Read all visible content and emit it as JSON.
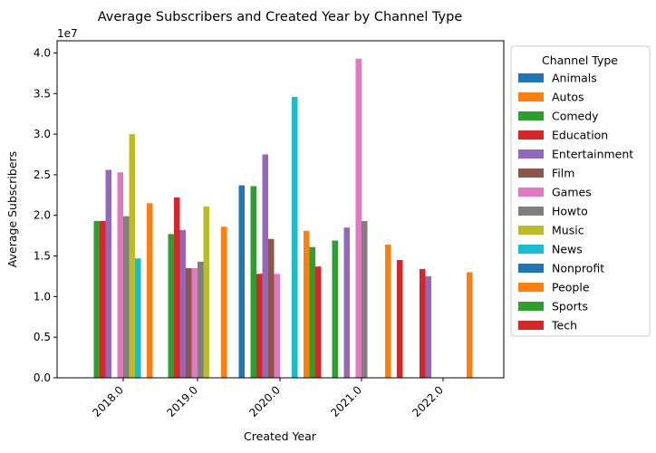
{
  "chart_data": {
    "type": "bar",
    "title": "Average Subscribers and Created Year by Channel Type",
    "xlabel": "Created Year",
    "ylabel": "Average Subscribers",
    "y_offset_label": "1e7",
    "y_scale": 10000000,
    "ylim": [
      0,
      41500000
    ],
    "y_ticks": [
      0,
      5000000,
      10000000,
      15000000,
      20000000,
      25000000,
      30000000,
      35000000,
      40000000
    ],
    "y_tick_labels": [
      "0.0",
      "0.5",
      "1.0",
      "1.5",
      "2.0",
      "2.5",
      "3.0",
      "3.5",
      "4.0"
    ],
    "categories": [
      "2018.0",
      "2019.0",
      "2020.0",
      "2021.0",
      "2022.0"
    ],
    "legend": {
      "title": "Channel Type",
      "placement": "outside-right"
    },
    "grid": false,
    "series": [
      {
        "name": "Animals",
        "color": "#1f77b4",
        "values": [
          null,
          null,
          23700000,
          null,
          null
        ]
      },
      {
        "name": "Autos",
        "color": "#ff7f0e",
        "values": [
          null,
          null,
          null,
          null,
          null
        ]
      },
      {
        "name": "Comedy",
        "color": "#2ca02c",
        "values": [
          19300000,
          17700000,
          23600000,
          null,
          null
        ]
      },
      {
        "name": "Education",
        "color": "#d62728",
        "values": [
          19300000,
          22200000,
          12800000,
          null,
          null
        ]
      },
      {
        "name": "Entertainment",
        "color": "#9467bd",
        "values": [
          25600000,
          18200000,
          27500000,
          null,
          null
        ]
      },
      {
        "name": "Film",
        "color": "#8c564b",
        "values": [
          null,
          13500000,
          null,
          null,
          null
        ]
      },
      {
        "name": "Games",
        "color": "#e377c2",
        "values": [
          25300000,
          13500000,
          null,
          null,
          null
        ]
      },
      {
        "name": "Howto",
        "color": "#7f7f7f",
        "values": [
          19900000,
          14300000,
          null,
          null,
          null
        ]
      },
      {
        "name": "Music",
        "color": "#bcbd22",
        "values": [
          30000000,
          21100000,
          null,
          null,
          null
        ]
      },
      {
        "name": "News",
        "color": "#17becf",
        "values": [
          14700000,
          null,
          null,
          null,
          null
        ]
      },
      {
        "name": "Nonprofit",
        "color": "#1f77b4",
        "values": [
          null,
          null,
          null,
          null,
          null
        ]
      },
      {
        "name": "People",
        "color": "#ff7f0e",
        "values": [
          21500000,
          18600000,
          null,
          null,
          null
        ]
      },
      {
        "name": "Sports",
        "color": "#2ca02c",
        "values": [
          null,
          null,
          null,
          null,
          null
        ]
      },
      {
        "name": "Tech",
        "color": "#d62728",
        "values": [
          null,
          null,
          null,
          null,
          null
        ]
      }
    ],
    "extra_bars": [
      {
        "series": "Film",
        "category": "2020.0",
        "value": 17100000
      },
      {
        "series": "Games",
        "category": "2020.0",
        "value": 12800000
      },
      {
        "series": "News",
        "category": "2020.0",
        "value": 34600000
      },
      {
        "series": "People",
        "category": "2020.0",
        "value": 18100000
      },
      {
        "series": "Sports",
        "category": "2020.0",
        "value": 16100000
      },
      {
        "series": "Tech",
        "category": "2020.0",
        "value": 13700000
      },
      {
        "series": "Comedy",
        "category": "2021.0",
        "value": 16900000
      },
      {
        "series": "Entertainment",
        "category": "2021.0",
        "value": 18500000
      },
      {
        "series": "Games",
        "category": "2021.0",
        "value": 39300000
      },
      {
        "series": "Howto",
        "category": "2021.0",
        "value": 19300000
      },
      {
        "series": "People",
        "category": "2021.0",
        "value": 16400000
      },
      {
        "series": "Tech",
        "category": "2021.0",
        "value": 14500000
      },
      {
        "series": "Education",
        "category": "2022.0",
        "value": 13400000
      },
      {
        "series": "Entertainment",
        "category": "2022.0",
        "value": 12500000
      },
      {
        "series": "People",
        "category": "2022.0",
        "value": 13000000
      }
    ]
  }
}
